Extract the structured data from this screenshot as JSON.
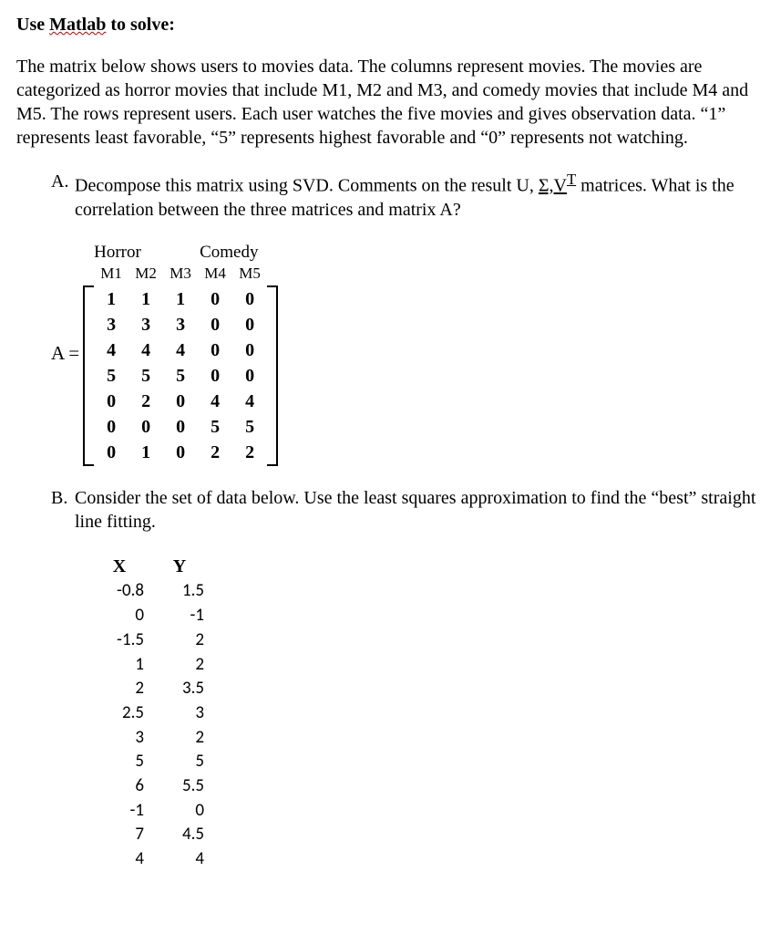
{
  "title_prefix": "Use ",
  "title_wavy": "Matlab",
  "title_suffix": " to solve:",
  "intro": "The matrix below shows users to movies data. The columns represent movies. The movies are categorized as horror movies that include M1, M2 and M3, and comedy movies that include M4 and M5. The rows represent users. Each user watches the five movies and gives observation data. “1” represents least favorable, “5” represents highest favorable and “0” represents not watching.",
  "partA": {
    "label": "A.",
    "text_before": "Decompose this matrix using SVD.  Comments on the result U, ",
    "sigma": "Σ,",
    "vt": "V",
    "vt_sup": "T",
    "text_after": " matrices. What is the correlation between the three matrices and matrix A?"
  },
  "matrix": {
    "eq_label": "A =",
    "genres": [
      "Horror",
      "Comedy"
    ],
    "col_headers": [
      "M1",
      "M2",
      "M3",
      "M4",
      "M5"
    ],
    "rows": [
      [
        "1",
        "1",
        "1",
        "0",
        "0"
      ],
      [
        "3",
        "3",
        "3",
        "0",
        "0"
      ],
      [
        "4",
        "4",
        "4",
        "0",
        "0"
      ],
      [
        "5",
        "5",
        "5",
        "0",
        "0"
      ],
      [
        "0",
        "2",
        "0",
        "4",
        "4"
      ],
      [
        "0",
        "0",
        "0",
        "5",
        "5"
      ],
      [
        "0",
        "1",
        "0",
        "2",
        "2"
      ]
    ]
  },
  "partB": {
    "label": "B.",
    "text": "Consider the set of data below. Use the least squares approximation to find the “best” straight line fitting."
  },
  "xy": {
    "header_x": "X",
    "header_y": "Y",
    "rows": [
      [
        "-0.8",
        "1.5"
      ],
      [
        "0",
        "-1"
      ],
      [
        "-1.5",
        "2"
      ],
      [
        "1",
        "2"
      ],
      [
        "2",
        "3.5"
      ],
      [
        "2.5",
        "3"
      ],
      [
        "3",
        "2"
      ],
      [
        "5",
        "5"
      ],
      [
        "6",
        "5.5"
      ],
      [
        "-1",
        "0"
      ],
      [
        "7",
        "4.5"
      ],
      [
        "4",
        "4"
      ]
    ]
  }
}
